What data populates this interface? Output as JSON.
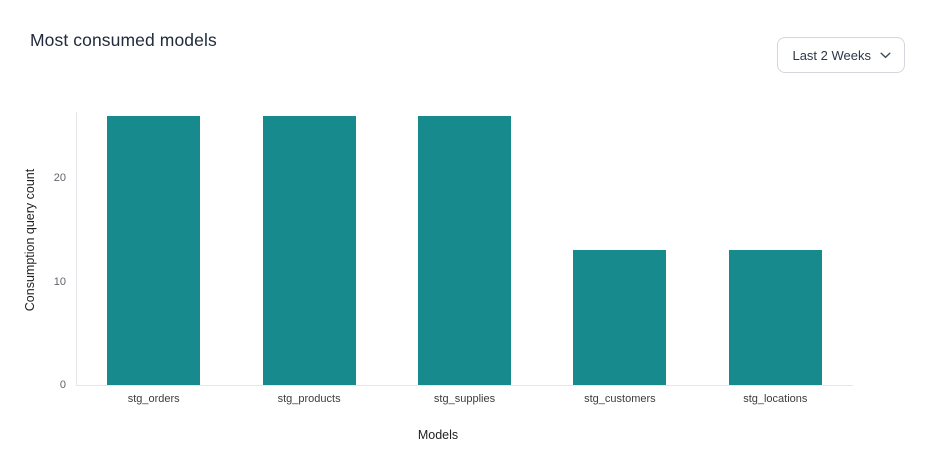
{
  "header": {
    "title": "Most consumed models"
  },
  "filter": {
    "label": "Last 2 Weeks",
    "icon": "chevron-down-icon"
  },
  "chart_data": {
    "type": "bar",
    "title": "Most consumed models",
    "categories": [
      "stg_orders",
      "stg_products",
      "stg_supplies",
      "stg_customers",
      "stg_locations"
    ],
    "values": [
      26,
      26,
      26,
      13,
      13
    ],
    "xlabel": "Models",
    "ylabel": "Consumption query count",
    "yticks": [
      0,
      10,
      20
    ],
    "ylim": [
      0,
      26
    ],
    "bar_color": "#178a8d",
    "axis_line_color": "#e4e6e9",
    "grid": false,
    "legend": "none"
  }
}
